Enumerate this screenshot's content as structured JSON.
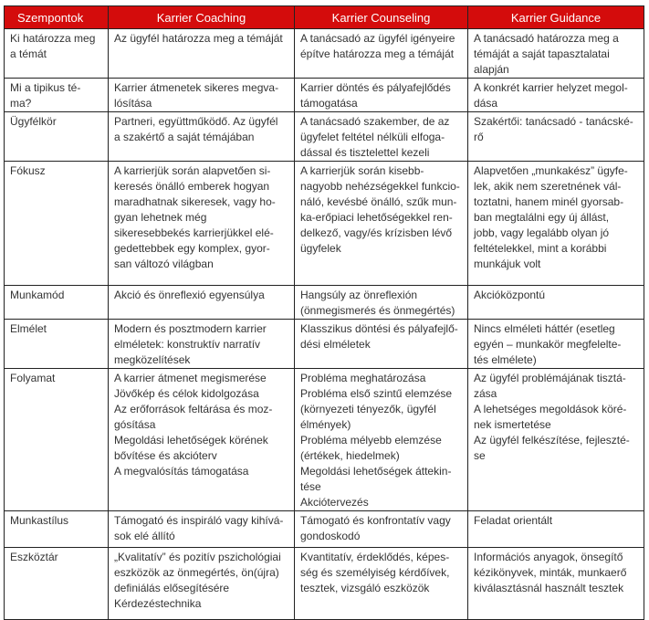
{
  "header": [
    "Szempontok",
    "Karrier Coaching",
    "Karrier Counseling",
    "Karrier Guidance"
  ],
  "header_color": "#d40c0c",
  "rows": [
    [
      "Ki határozza meg\na témát",
      "Az ügyfél határozza meg a témáját",
      "A tanácsadó az ügyfél igényeire\népítve határozza meg a témáját",
      "A tanácsadó határozza meg a\ntémáját a saját tapasztalatai\nalapján"
    ],
    [
      "Mi a tipikus té-\nma?",
      "Karrier átmenetek sikeres megva-\nlósítása",
      "Karrier döntés és pályafejlődés\ntámogatása",
      "A konkrét karrier helyzet megol-\ndása"
    ],
    [
      "Ügyfélkör",
      "Partneri, együttműködő. Az ügyfél\na szakértő a saját témájában",
      "A tanácsadó szakember, de az\nügyfelet feltétel nélküli elfoga-\ndással és tisztelettel kezeli",
      "Szakértői: tanácsadó - tanácské-\nrő"
    ],
    [
      "Fókusz",
      "A karrierjük során alapvetően si-\nkeresés önálló emberek hogyan\nmaradhatnak sikeresek, vagy ho-\ngyan lehetnek még\nsikeresebbekés karrierjükkel elé-\ngedettebbek egy komplex, gyor-\nsan változó világban",
      "A karrierjük során kisebb-\nnagyobb nehézségekkel funkcio-\nnáló, kevésbé önálló, szűk mun-\nka-erőpiaci lehetőségekkel ren-\ndelkező, vagy/és krízisben lévő\nügyfelek",
      "Alapvetően „munkakész” ügyfe-\nlek, akik nem szeretnének vál-\ntoztatni, hanem minél gyorsab-\nban megtalálni egy új állást,\njobb, vagy legalább olyan jó\nfeltételekkel, mint a korábbi\nmunkájuk volt"
    ],
    [
      "Munkamód",
      "Akció és önreflexió egyensúlya",
      "Hangsúly az önreflexión\n(önmegismerés és önmegértés)",
      "Akcióközpontú"
    ],
    [
      "Elmélet",
      "Modern és posztmodern karrier\nelméletek: konstruktív narratív\nmegközelítések",
      "Klasszikus döntési és pályafejlő-\ndési elméletek",
      "Nincs elméleti háttér (esetleg\negyén – munkakör megfelelte-\ntés elmélete)"
    ],
    [
      "Folyamat",
      "A karrier átmenet megismerése\nJövőkép és célok kidolgozása\nAz erőforrások feltárása és moz-\ngósítása\nMegoldási lehetőségek körének\nbővítése és akcióterv\nA megvalósítás támogatása",
      "Probléma meghatározása\nProbléma első szintű elemzése\n(környezeti tényezők, ügyfél\nélmények)\nProbléma mélyebb elemzése\n(értékek, hiedelmek)\nMegoldási lehetőségek áttekin-\ntése\nAkciótervezés",
      "Az ügyfél problémájának tisztá-\nzása\nA lehetséges megoldások köré-\nnek ismertetése\nAz ügyfél felkészítése, fejleszté-\nse"
    ],
    [
      "Munkastílus",
      "Támogató és inspiráló vagy kihívá-\nsok elé állító",
      "Támogató és konfrontatív vagy\ngondoskodó",
      "Feladat orientált"
    ],
    [
      "Eszköztár",
      "„Kvalitatív” és pozitív pszichológiai\neszközök az önmegértés, ön(újra)\ndefiniálás elősegítésére\nKérdezéstechnika",
      "Kvantitatív, érdeklődés, képes-\nség és személyiség kérdőívek,\ntesztek, vizsgáló eszközök",
      "Információs anyagok, önsegítő\nkézikönyvek, minták, munkaerő\nkiválasztásnál használt tesztek"
    ]
  ]
}
